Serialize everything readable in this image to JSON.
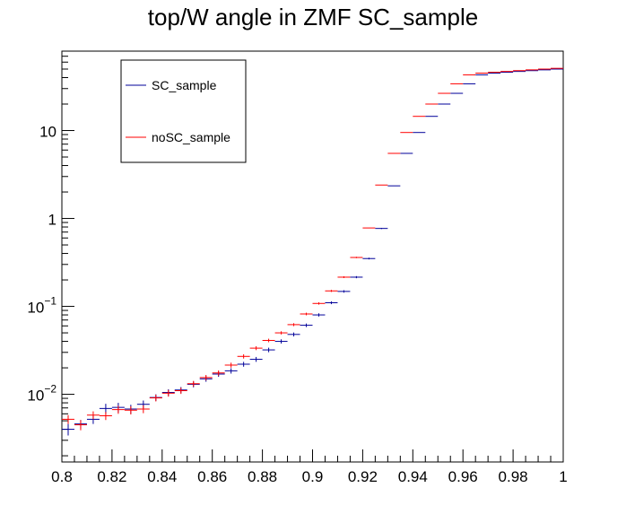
{
  "chart_data": {
    "type": "scatter",
    "title": "top/W angle in ZMF SC_sample",
    "xlabel": "",
    "ylabel": "",
    "xlim": [
      0.8,
      1.0
    ],
    "ylim": [
      0.0017,
      80
    ],
    "yscale": "log",
    "grid": false,
    "legend_position": "top-left",
    "x_tick_labels": [
      "0.8",
      "0.82",
      "0.84",
      "0.86",
      "0.88",
      "0.9",
      "0.92",
      "0.94",
      "0.96",
      "0.98",
      "1"
    ],
    "y_tick_labels": [
      {
        "base": "10",
        "exp": "−2",
        "value": 0.01
      },
      {
        "base": "10",
        "exp": "−1",
        "value": 0.1
      },
      {
        "base": "1",
        "exp": "",
        "value": 1
      },
      {
        "base": "10",
        "exp": "",
        "value": 10
      }
    ],
    "bin_width": 0.005,
    "x": [
      0.8025,
      0.8075,
      0.8125,
      0.8175,
      0.8225,
      0.8275,
      0.8325,
      0.8375,
      0.8425,
      0.8475,
      0.8525,
      0.8575,
      0.8625,
      0.8675,
      0.8725,
      0.8775,
      0.8825,
      0.8875,
      0.8925,
      0.8975,
      0.9025,
      0.9075,
      0.9125,
      0.9175,
      0.9225,
      0.9275,
      0.9325,
      0.9375,
      0.9425,
      0.9475,
      0.9525,
      0.9575,
      0.9625,
      0.9675,
      0.9725,
      0.9775,
      0.9825,
      0.9875,
      0.9925,
      0.9975
    ],
    "series": [
      {
        "name": "SC_sample",
        "color": "#000099",
        "values": [
          0.004,
          0.0046,
          0.0052,
          0.0069,
          0.0071,
          0.0068,
          0.0077,
          0.0092,
          0.0105,
          0.0112,
          0.013,
          0.015,
          0.017,
          0.0185,
          0.022,
          0.025,
          0.032,
          0.04,
          0.048,
          0.061,
          0.08,
          0.11,
          0.148,
          0.215,
          0.35,
          0.77,
          2.35,
          5.5,
          9.5,
          14.5,
          20.0,
          26.5,
          34.0,
          43.0,
          45.0,
          46.0,
          47.0,
          48.0,
          49.0,
          50.0
        ],
        "errors": [
          0.0006,
          0.0005,
          0.0006,
          0.0009,
          0.0009,
          0.0008,
          0.0008,
          0.0008,
          0.0009,
          0.0009,
          0.001,
          0.0011,
          0.0012,
          0.0013,
          0.0014,
          0.0016,
          0.0019,
          0.0022,
          0.0025,
          0.0028,
          0.0034,
          0.004,
          0.0048,
          0.006,
          0.008,
          0.012,
          0.02,
          0.03,
          0.04,
          0.05,
          0.06,
          0.07,
          0.08,
          0.09,
          0.1,
          0.1,
          0.1,
          0.1,
          0.1,
          0.1
        ]
      },
      {
        "name": "noSC_sample",
        "color": "#ff0000",
        "values": [
          0.0052,
          0.0045,
          0.0058,
          0.0057,
          0.0067,
          0.0066,
          0.0068,
          0.0091,
          0.0103,
          0.011,
          0.0132,
          0.0155,
          0.0175,
          0.0215,
          0.027,
          0.0335,
          0.041,
          0.05,
          0.062,
          0.082,
          0.108,
          0.15,
          0.215,
          0.36,
          0.78,
          2.4,
          5.5,
          9.5,
          14.5,
          20.0,
          26.5,
          34.0,
          43.0,
          45.0,
          46.0,
          47.0,
          48.0,
          49.0,
          50.0,
          51.0
        ],
        "errors": [
          0.0006,
          0.0006,
          0.0006,
          0.0006,
          0.0007,
          0.0007,
          0.0007,
          0.0008,
          0.0009,
          0.0009,
          0.001,
          0.0011,
          0.0012,
          0.0014,
          0.0015,
          0.0017,
          0.0019,
          0.0021,
          0.0024,
          0.0028,
          0.0033,
          0.004,
          0.005,
          0.0065,
          0.01,
          0.02,
          0.03,
          0.04,
          0.05,
          0.06,
          0.07,
          0.08,
          0.09,
          0.1,
          0.1,
          0.1,
          0.1,
          0.1,
          0.1,
          0.1
        ]
      }
    ]
  }
}
